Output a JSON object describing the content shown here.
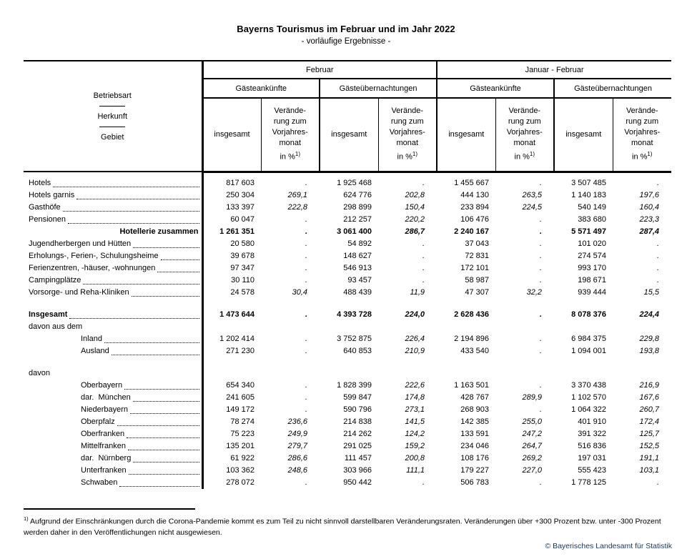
{
  "title": "Bayerns Tourismus im Februar und im Jahr 2022",
  "subtitle": "- vorläufige Ergebnisse -",
  "table": {
    "stub": [
      "Betriebsart",
      "Herkunft",
      "Gebiet"
    ],
    "groups": {
      "feb": "Februar",
      "janfeb": "Januar - Februar"
    },
    "subgroups": [
      "Gästeankünfte",
      "Gästeübernachtungen",
      "Gästeankünfte",
      "Gästeübernachtungen"
    ],
    "total_label": "insgesamt",
    "change_lines": [
      "Verände-",
      "rung zum",
      "Vorjahres-",
      "monat"
    ],
    "change_unit": "in %",
    "rows": [
      {
        "spacer": true
      },
      {
        "label": "Hotels",
        "leader": true,
        "values": [
          "817 603",
          ".",
          "1 925 468",
          ".",
          "1 455 667",
          ".",
          "3 507 485",
          "."
        ]
      },
      {
        "label": "Hotels garnis",
        "leader": true,
        "values": [
          "250 304",
          "269,1",
          "624 776",
          "202,8",
          "444 130",
          "263,5",
          "1 140 183",
          "197,6"
        ]
      },
      {
        "label": "Gasthöfe",
        "leader": true,
        "values": [
          "133 397",
          "222,8",
          "298 899",
          "150,4",
          "233 894",
          "224,5",
          "540 149",
          "160,4"
        ]
      },
      {
        "label": "Pensionen",
        "leader": true,
        "values": [
          "60 047",
          ".",
          "212 257",
          "220,2",
          "106 476",
          ".",
          "383 680",
          "223,3"
        ]
      },
      {
        "label": "Hotellerie zusammen",
        "bold": true,
        "align": "right",
        "values": [
          "1 261 351",
          ".",
          "3 061 400",
          "286,7",
          "2 240 167",
          ".",
          "5 571 497",
          "287,4"
        ]
      },
      {
        "label": "Jugendherbergen und Hütten",
        "leader": true,
        "values": [
          "20 580",
          ".",
          "54 892",
          ".",
          "37 043",
          ".",
          "101 020",
          "."
        ]
      },
      {
        "label": "Erholungs-, Ferien-, Schulungsheime",
        "leader": true,
        "values": [
          "39 678",
          ".",
          "148 627",
          ".",
          "72 831",
          ".",
          "274 574",
          "."
        ]
      },
      {
        "label": "Ferienzentren, -häuser, -wohnungen",
        "leader": true,
        "values": [
          "97 347",
          ".",
          "546 913",
          ".",
          "172 101",
          ".",
          "993 170",
          "."
        ]
      },
      {
        "label": "Campingplätze",
        "leader": true,
        "values": [
          "30 110",
          ".",
          "93 457",
          ".",
          "58 987",
          ".",
          "198 671",
          "."
        ]
      },
      {
        "label": "Vorsorge- und Reha-Kliniken",
        "leader": true,
        "values": [
          "24 578",
          "30,4",
          "488 439",
          "11,9",
          "47 307",
          "32,2",
          "939 444",
          "15,5"
        ]
      },
      {
        "gap": true
      },
      {
        "label": "Insgesamt",
        "bold": true,
        "leader": true,
        "values": [
          "1 473 644",
          ".",
          "4 393 728",
          "224,0",
          "2 628 436",
          ".",
          "8 078 376",
          "224,4"
        ]
      },
      {
        "label": "davon aus dem",
        "values": [
          "",
          "",
          "",
          "",
          "",
          "",
          "",
          ""
        ]
      },
      {
        "label": "Inland",
        "indent": true,
        "leader": true,
        "values": [
          "1 202 414",
          ".",
          "3 752 875",
          "226,4",
          "2 194 896",
          ".",
          "6 984 375",
          "229,8"
        ]
      },
      {
        "label": "Ausland",
        "indent": true,
        "leader": true,
        "values": [
          "271 230",
          ".",
          "640 853",
          "210,9",
          "433 540",
          ".",
          "1 094 001",
          "193,8"
        ]
      },
      {
        "gap": true
      },
      {
        "label": "davon",
        "values": [
          "",
          "",
          "",
          "",
          "",
          "",
          "",
          ""
        ]
      },
      {
        "label": "Oberbayern",
        "indent": true,
        "leader": true,
        "values": [
          "654 340",
          ".",
          "1 828 399",
          "222,6",
          "1 163 501",
          ".",
          "3 370 438",
          "216,9"
        ]
      },
      {
        "label": "dar.  München",
        "indent": true,
        "leader": true,
        "values": [
          "241 605",
          ".",
          "599 847",
          "174,8",
          "428 767",
          "289,9",
          "1 102 570",
          "167,6"
        ]
      },
      {
        "label": "Niederbayern",
        "indent": true,
        "leader": true,
        "values": [
          "149 172",
          ".",
          "590 796",
          "273,1",
          "268 903",
          ".",
          "1 064 322",
          "260,7"
        ]
      },
      {
        "label": "Oberpfalz",
        "indent": true,
        "leader": true,
        "values": [
          "78 274",
          "236,6",
          "214 838",
          "141,5",
          "142 385",
          "255,0",
          "401 910",
          "172,4"
        ]
      },
      {
        "label": "Oberfranken",
        "indent": true,
        "leader": true,
        "values": [
          "75 223",
          "249,9",
          "214 262",
          "124,2",
          "133 591",
          "247,2",
          "391 322",
          "125,7"
        ]
      },
      {
        "label": "Mittelfranken",
        "indent": true,
        "leader": true,
        "values": [
          "135 201",
          "279,7",
          "291 025",
          "159,2",
          "234 046",
          "264,7",
          "516 836",
          "152,5"
        ]
      },
      {
        "label": "dar.  Nürnberg",
        "indent": true,
        "leader": true,
        "values": [
          "61 922",
          "286,6",
          "111 457",
          "200,8",
          "108 176",
          "269,2",
          "197 031",
          "191,1"
        ]
      },
      {
        "label": "Unterfranken",
        "indent": true,
        "leader": true,
        "values": [
          "103 362",
          "248,6",
          "303 966",
          "111,1",
          "179 227",
          "227,0",
          "555 423",
          "103,1"
        ]
      },
      {
        "label": "Schwaben",
        "indent": true,
        "leader": true,
        "values": [
          "278 072",
          ".",
          "950 442",
          ".",
          "506 783",
          ".",
          "1 778 125",
          "."
        ]
      }
    ]
  },
  "footnote": {
    "marker": "1)",
    "text": " Aufgrund der Einschränkungen durch die Corona-Pandemie kommt es zum Teil zu nicht sinnvoll darstellbaren Veränderungsraten. Veränderungen über +300 Prozent bzw. unter -300 Prozent werden daher in den Veröffentlichungen nicht ausgewiesen."
  },
  "copyright": "© Bayerisches Landesamt für Statistik"
}
